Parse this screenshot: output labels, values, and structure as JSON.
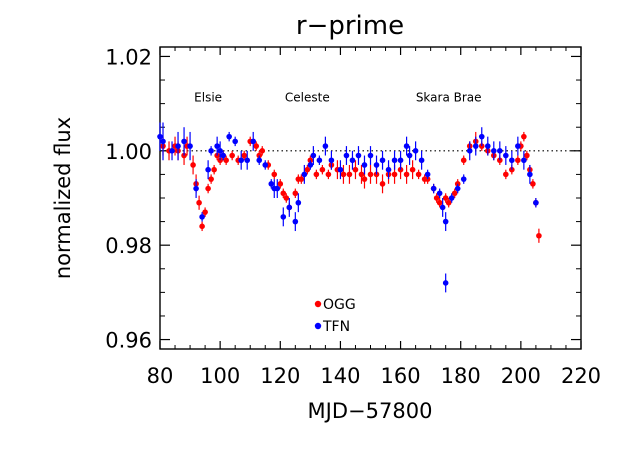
{
  "chart_data": {
    "type": "scatter",
    "title": "r−prime",
    "xlabel": "MJD−57800",
    "ylabel": "normalized flux",
    "xlim": [
      80,
      220
    ],
    "ylim": [
      0.958,
      1.022
    ],
    "xticks": [
      80,
      100,
      120,
      140,
      160,
      180,
      200,
      220
    ],
    "xtick_labels": [
      "80",
      "100",
      "120",
      "140",
      "160",
      "180",
      "200",
      "220"
    ],
    "yticks": [
      0.96,
      0.98,
      1.0,
      1.02
    ],
    "ytick_labels": [
      "0.96",
      "0.98",
      "1.00",
      "1.02"
    ],
    "reference_line": 1.0,
    "annotations": [
      {
        "text": "Elsie",
        "x": 96,
        "y": 1.0105
      },
      {
        "text": "Celeste",
        "x": 129,
        "y": 1.0105
      },
      {
        "text": "Skara Brae",
        "x": 176,
        "y": 1.0105
      }
    ],
    "legend_position": "bottom-center",
    "series": [
      {
        "name": "OGG",
        "color": "#ff0000",
        "points": [
          [
            81,
            1.001,
            0.002
          ],
          [
            83,
            1.0,
            0.002
          ],
          [
            85,
            1.001,
            0.002
          ],
          [
            86,
            1.0,
            0.002
          ],
          [
            88,
            0.999,
            0.002
          ],
          [
            89,
            1.001,
            0.002
          ],
          [
            91,
            0.997,
            0.002
          ],
          [
            92,
            0.993,
            0.002
          ],
          [
            93,
            0.989,
            0.0015
          ],
          [
            94,
            0.984,
            0.001
          ],
          [
            95,
            0.987,
            0.001
          ],
          [
            96,
            0.992,
            0.001
          ],
          [
            97,
            0.994,
            0.001
          ],
          [
            98,
            0.996,
            0.001
          ],
          [
            99,
            0.999,
            0.001
          ],
          [
            100,
            0.998,
            0.001
          ],
          [
            101,
            0.999,
            0.001
          ],
          [
            102,
            0.998,
            0.001
          ],
          [
            104,
            0.999,
            0.001
          ],
          [
            106,
            0.998,
            0.001
          ],
          [
            108,
            0.999,
            0.001
          ],
          [
            110,
            1.002,
            0.001
          ],
          [
            112,
            1.001,
            0.001
          ],
          [
            113,
            0.999,
            0.001
          ],
          [
            114,
            1.0,
            0.001
          ],
          [
            116,
            0.997,
            0.001
          ],
          [
            118,
            0.995,
            0.001
          ],
          [
            120,
            0.993,
            0.001
          ],
          [
            121,
            0.991,
            0.001
          ],
          [
            122,
            0.99,
            0.001
          ],
          [
            123,
            0.988,
            0.001
          ],
          [
            125,
            0.991,
            0.001
          ],
          [
            126,
            0.994,
            0.001
          ],
          [
            127,
            0.994,
            0.001
          ],
          [
            129,
            0.996,
            0.001
          ],
          [
            130,
            0.998,
            0.001
          ],
          [
            132,
            0.995,
            0.001
          ],
          [
            134,
            0.996,
            0.001
          ],
          [
            136,
            0.995,
            0.001
          ],
          [
            137,
            0.997,
            0.001
          ],
          [
            139,
            0.996,
            0.002
          ],
          [
            141,
            0.995,
            0.002
          ],
          [
            143,
            0.995,
            0.002
          ],
          [
            145,
            0.996,
            0.002
          ],
          [
            147,
            0.995,
            0.002
          ],
          [
            148,
            0.994,
            0.002
          ],
          [
            150,
            0.995,
            0.002
          ],
          [
            152,
            0.995,
            0.002
          ],
          [
            154,
            0.993,
            0.002
          ],
          [
            156,
            0.995,
            0.002
          ],
          [
            158,
            0.995,
            0.002
          ],
          [
            160,
            0.996,
            0.002
          ],
          [
            162,
            0.995,
            0.002
          ],
          [
            164,
            0.996,
            0.002
          ],
          [
            166,
            0.995,
            0.001
          ],
          [
            168,
            0.994,
            0.001
          ],
          [
            169,
            0.994,
            0.001
          ],
          [
            171,
            0.992,
            0.001
          ],
          [
            172,
            0.99,
            0.001
          ],
          [
            173,
            0.989,
            0.001
          ],
          [
            175,
            0.99,
            0.001
          ],
          [
            176,
            0.989,
            0.001
          ],
          [
            178,
            0.991,
            0.001
          ],
          [
            179,
            0.993,
            0.001
          ],
          [
            181,
            0.998,
            0.001
          ],
          [
            183,
            1.001,
            0.001
          ],
          [
            185,
            1.002,
            0.002
          ],
          [
            187,
            1.001,
            0.001
          ],
          [
            189,
            1.0,
            0.001
          ],
          [
            191,
            0.999,
            0.001
          ],
          [
            193,
            0.998,
            0.001
          ],
          [
            195,
            0.995,
            0.001
          ],
          [
            197,
            0.996,
            0.001
          ],
          [
            199,
            0.998,
            0.001
          ],
          [
            200,
            1.001,
            0.001
          ],
          [
            201,
            1.003,
            0.001
          ],
          [
            202,
            0.999,
            0.001
          ],
          [
            203,
            0.996,
            0.001
          ],
          [
            204,
            0.993,
            0.001
          ],
          [
            205,
            0.989,
            0.001
          ],
          [
            206,
            0.982,
            0.0015
          ]
        ]
      },
      {
        "name": "TFN",
        "color": "#0000ff",
        "points": [
          [
            80,
            1.003,
            0.003
          ],
          [
            81,
            1.002,
            0.004
          ],
          [
            84,
            1.0,
            0.002
          ],
          [
            86,
            1.001,
            0.003
          ],
          [
            88,
            1.002,
            0.003
          ],
          [
            90,
            1.001,
            0.003
          ],
          [
            92,
            0.992,
            0.002
          ],
          [
            94,
            0.986,
            0.001
          ],
          [
            96,
            0.996,
            0.002
          ],
          [
            97,
            1.0,
            0.001
          ],
          [
            99,
            1.001,
            0.002
          ],
          [
            100,
            1.0,
            0.002
          ],
          [
            101,
            0.999,
            0.001
          ],
          [
            103,
            1.003,
            0.001
          ],
          [
            105,
            1.002,
            0.001
          ],
          [
            107,
            0.998,
            0.002
          ],
          [
            109,
            0.998,
            0.002
          ],
          [
            111,
            1.002,
            0.002
          ],
          [
            113,
            0.998,
            0.001
          ],
          [
            115,
            0.997,
            0.001
          ],
          [
            117,
            0.993,
            0.001
          ],
          [
            118,
            0.992,
            0.002
          ],
          [
            119,
            0.992,
            0.002
          ],
          [
            121,
            0.986,
            0.002
          ],
          [
            123,
            0.988,
            0.002
          ],
          [
            125,
            0.985,
            0.002
          ],
          [
            126,
            0.989,
            0.002
          ],
          [
            128,
            0.995,
            0.002
          ],
          [
            130,
            0.997,
            0.001
          ],
          [
            131,
            0.999,
            0.002
          ],
          [
            133,
            0.998,
            0.001
          ],
          [
            135,
            1.001,
            0.002
          ],
          [
            137,
            0.998,
            0.002
          ],
          [
            140,
            0.996,
            0.002
          ],
          [
            142,
            0.999,
            0.002
          ],
          [
            144,
            0.998,
            0.002
          ],
          [
            146,
            0.999,
            0.002
          ],
          [
            148,
            0.997,
            0.002
          ],
          [
            150,
            0.999,
            0.002
          ],
          [
            152,
            0.997,
            0.002
          ],
          [
            154,
            0.998,
            0.002
          ],
          [
            156,
            0.996,
            0.002
          ],
          [
            158,
            0.998,
            0.002
          ],
          [
            160,
            0.998,
            0.002
          ],
          [
            162,
            1.001,
            0.002
          ],
          [
            163,
            0.999,
            0.002
          ],
          [
            165,
            1.0,
            0.002
          ],
          [
            167,
            0.998,
            0.002
          ],
          [
            169,
            0.995,
            0.001
          ],
          [
            171,
            0.992,
            0.001
          ],
          [
            173,
            0.991,
            0.001
          ],
          [
            174,
            0.988,
            0.002
          ],
          [
            175,
            0.985,
            0.002
          ],
          [
            175,
            0.972,
            0.002
          ],
          [
            177,
            0.99,
            0.001
          ],
          [
            179,
            0.992,
            0.001
          ],
          [
            181,
            0.994,
            0.001
          ],
          [
            183,
            1.0,
            0.002
          ],
          [
            185,
            1.001,
            0.002
          ],
          [
            187,
            1.003,
            0.002
          ],
          [
            189,
            1.001,
            0.002
          ],
          [
            191,
            1.0,
            0.002
          ],
          [
            193,
            1.0,
            0.002
          ],
          [
            195,
            0.999,
            0.002
          ],
          [
            197,
            0.998,
            0.002
          ],
          [
            199,
            1.001,
            0.002
          ],
          [
            201,
            0.998,
            0.002
          ],
          [
            203,
            0.995,
            0.002
          ],
          [
            205,
            0.989,
            0.001
          ]
        ]
      }
    ]
  }
}
